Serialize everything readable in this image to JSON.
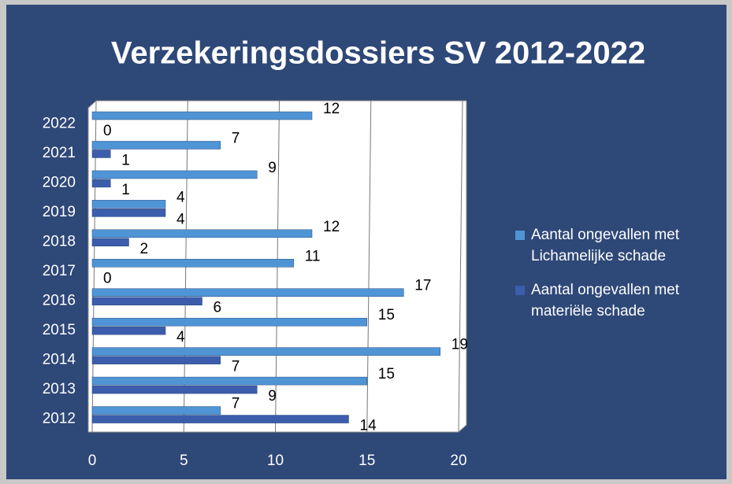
{
  "chart_data": {
    "type": "barh",
    "title": "Verzekeringsdossiers SV 2012-2022",
    "categories": [
      "2012",
      "2013",
      "2014",
      "2015",
      "2016",
      "2017",
      "2018",
      "2019",
      "2020",
      "2021",
      "2022"
    ],
    "series": [
      {
        "name": "Aantal ongevallen met Lichamelijke schade",
        "color": "#4f95d6",
        "values": [
          7,
          15,
          19,
          15,
          17,
          11,
          12,
          4,
          9,
          7,
          12
        ]
      },
      {
        "name": "Aantal ongevallen met materiële schade",
        "color": "#3b5dab",
        "values": [
          14,
          9,
          7,
          4,
          6,
          0,
          2,
          4,
          1,
          1,
          0
        ]
      }
    ],
    "xlim": [
      0,
      20
    ],
    "xticks": [
      0,
      5,
      10,
      15,
      20
    ],
    "grid": true,
    "legend": "right"
  }
}
